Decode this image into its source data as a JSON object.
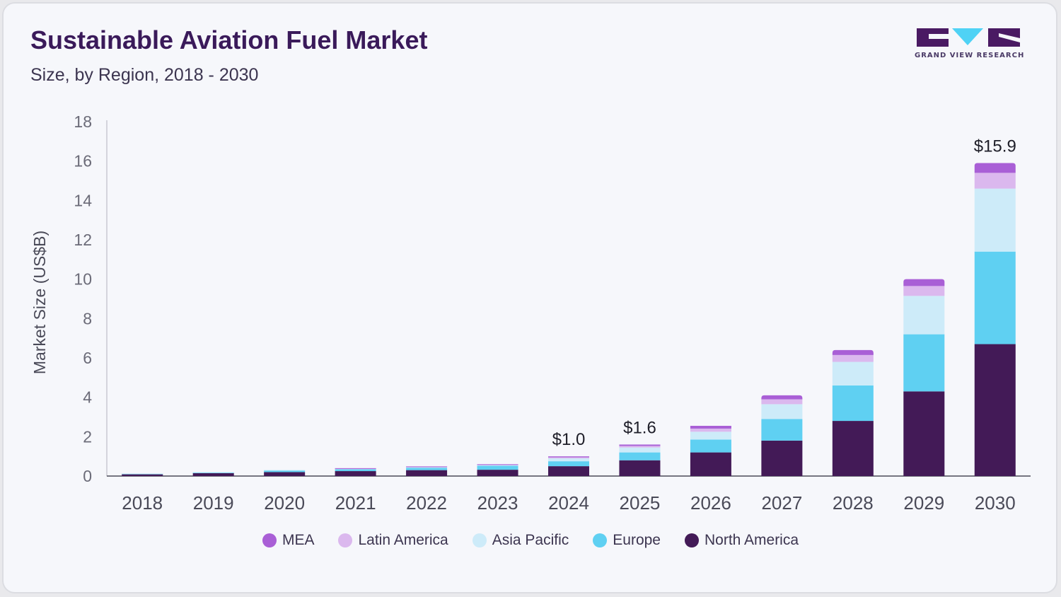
{
  "header": {
    "title": "Sustainable Aviation Fuel Market",
    "subtitle": "Size, by Region, 2018 - 2030",
    "logo_text": "GRAND VIEW RESEARCH"
  },
  "colors": {
    "MEA": "#a95fd6",
    "Latin America": "#dbb8ee",
    "Asia Pacific": "#cdebf9",
    "Europe": "#5fd0f2",
    "North America": "#431a57",
    "logo_purple": "#4a1a63",
    "logo_cyan": "#4fd2f5"
  },
  "chart_data": {
    "type": "bar",
    "stacked": true,
    "title": "Sustainable Aviation Fuel Market",
    "subtitle": "Size, by Region, 2018 - 2030",
    "xlabel": "",
    "ylabel": "Market Size (US$B)",
    "ylim": [
      0,
      18
    ],
    "yticks": [
      0,
      2,
      4,
      6,
      8,
      10,
      12,
      14,
      16,
      18
    ],
    "grid": false,
    "legend_position": "bottom",
    "categories": [
      "2018",
      "2019",
      "2020",
      "2021",
      "2022",
      "2023",
      "2024",
      "2025",
      "2026",
      "2027",
      "2028",
      "2029",
      "2030"
    ],
    "series": [
      {
        "name": "North America",
        "values": [
          0.1,
          0.15,
          0.2,
          0.25,
          0.3,
          0.32,
          0.5,
          0.8,
          1.2,
          1.8,
          2.8,
          4.3,
          6.7
        ]
      },
      {
        "name": "Europe",
        "values": [
          0.02,
          0.03,
          0.08,
          0.1,
          0.12,
          0.2,
          0.25,
          0.4,
          0.65,
          1.1,
          1.8,
          2.9,
          4.7
        ]
      },
      {
        "name": "Asia Pacific",
        "values": [
          0.01,
          0.02,
          0.03,
          0.03,
          0.05,
          0.06,
          0.15,
          0.25,
          0.4,
          0.75,
          1.2,
          1.95,
          3.2
        ]
      },
      {
        "name": "Latin America",
        "values": [
          0.0,
          0.0,
          0.0,
          0.01,
          0.01,
          0.01,
          0.05,
          0.08,
          0.16,
          0.25,
          0.35,
          0.5,
          0.8
        ]
      },
      {
        "name": "MEA",
        "values": [
          0.0,
          0.0,
          0.0,
          0.01,
          0.01,
          0.01,
          0.05,
          0.07,
          0.14,
          0.2,
          0.25,
          0.35,
          0.5
        ]
      }
    ],
    "annotations": [
      {
        "category": "2024",
        "text": "$1.0"
      },
      {
        "category": "2025",
        "text": "$1.6"
      },
      {
        "category": "2030",
        "text": "$15.9"
      }
    ],
    "legend": [
      "MEA",
      "Latin America",
      "Asia Pacific",
      "Europe",
      "North America"
    ]
  }
}
